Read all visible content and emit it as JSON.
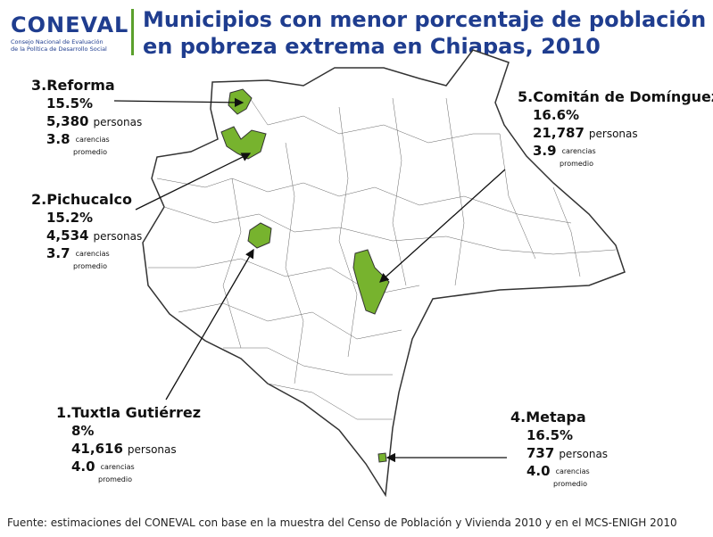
{
  "header": {
    "logo": "CONEVAL",
    "logo_subtitle_1": "Consejo Nacional de Evaluación",
    "logo_subtitle_2": "de la Política de Desarrollo Social",
    "title_line_1": "Municipios con menor porcentaje de población",
    "title_line_2": "en pobreza extrema en Chiapas, 2010"
  },
  "municipalities": [
    {
      "label": "3.Reforma",
      "percent": "15.5%",
      "people": "5,380",
      "people_unit": "personas",
      "deficiencies": "3.8",
      "deficiencies_unit_1": "carencias",
      "deficiencies_unit_2": "promedio"
    },
    {
      "label": "2.Pichucalco",
      "percent": "15.2%",
      "people": "4,534",
      "people_unit": "personas",
      "deficiencies": "3.7",
      "deficiencies_unit_1": "carencias",
      "deficiencies_unit_2": "promedio"
    },
    {
      "label": "1.Tuxtla Gutiérrez",
      "percent": "8%",
      "people": "41,616",
      "people_unit": "personas",
      "deficiencies": "4.0",
      "deficiencies_unit_1": "carencias",
      "deficiencies_unit_2": "promedio"
    },
    {
      "label": "5.Comitán de Domínguez",
      "percent": "16.6%",
      "people": "21,787",
      "people_unit": "personas",
      "deficiencies": "3.9",
      "deficiencies_unit_1": "carencias",
      "deficiencies_unit_2": "promedio"
    },
    {
      "label": "4.Metapa",
      "percent": "16.5%",
      "people": "737",
      "people_unit": "personas",
      "deficiencies": "4.0",
      "deficiencies_unit_1": "carencias",
      "deficiencies_unit_2": "promedio"
    }
  ],
  "source": "Fuente: estimaciones del CONEVAL con base en la muestra del Censo de Población y Vivienda 2010 y en el MCS-ENIGH 2010"
}
